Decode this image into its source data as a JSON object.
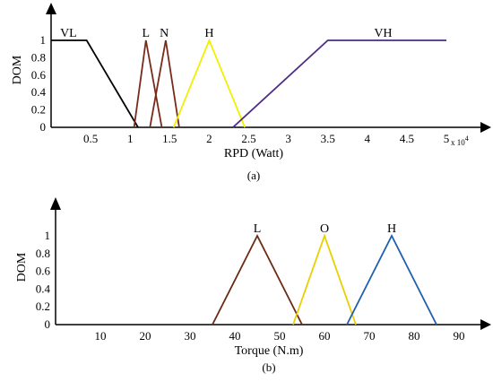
{
  "chart_data": [
    {
      "type": "line",
      "panel_label": "(a)",
      "xlabel": "RPD (Watt)",
      "ylabel": "DOM",
      "x_multiplier": "x 10",
      "x_multiplier_exp": "4",
      "xlim": [
        0,
        5.0
      ],
      "ylim": [
        0,
        1
      ],
      "xticks": [
        0.5,
        1,
        1.5,
        2,
        2.5,
        3,
        3.5,
        4,
        4.5,
        5
      ],
      "xtick_labels": [
        "0.5",
        "1",
        "1.5",
        "2",
        "2.5",
        "3",
        "3.5",
        "4",
        "4.5",
        "5"
      ],
      "yticks": [
        0,
        0.2,
        0.4,
        0.6,
        0.8,
        1
      ],
      "ytick_labels": [
        "0",
        "0.2",
        "0.4",
        "0.6",
        "0.8",
        "1"
      ],
      "series": [
        {
          "name": "VL",
          "color": "#000000",
          "label_x": 0.22,
          "x": [
            -0.4,
            0.45,
            1.1
          ],
          "y": [
            1,
            1,
            0
          ]
        },
        {
          "name": "L",
          "color": "#7a2a1a",
          "label_x": 1.2,
          "x": [
            1.05,
            1.2,
            1.4
          ],
          "y": [
            0,
            1,
            0
          ]
        },
        {
          "name": "N",
          "color": "#7a2a1a",
          "label_x": 1.43,
          "x": [
            1.25,
            1.45,
            1.62
          ],
          "y": [
            0,
            1,
            0
          ]
        },
        {
          "name": "H",
          "color": "#f0f000",
          "label_x": 2.0,
          "x": [
            1.55,
            2.0,
            2.45
          ],
          "y": [
            0,
            1,
            0
          ]
        },
        {
          "name": "VH",
          "color": "#4b2d86",
          "label_x": 4.2,
          "x": [
            2.3,
            3.5,
            5.0
          ],
          "y": [
            0,
            1,
            1
          ]
        }
      ]
    },
    {
      "type": "line",
      "panel_label": "(b)",
      "xlabel": "Torque (N.m)",
      "ylabel": "DOM",
      "xlim": [
        0,
        92
      ],
      "ylim": [
        0,
        1
      ],
      "xticks": [
        10,
        20,
        30,
        40,
        50,
        60,
        70,
        80,
        90
      ],
      "xtick_labels": [
        "10",
        "20",
        "30",
        "40",
        "50",
        "60",
        "70",
        "80",
        "90"
      ],
      "yticks": [
        0,
        0.2,
        0.4,
        0.6,
        0.8,
        1
      ],
      "ytick_labels": [
        "0",
        "0.2",
        "0.4",
        "0.6",
        "0.8",
        "1"
      ],
      "series": [
        {
          "name": "L",
          "color": "#6b2a14",
          "label_x": 45,
          "x": [
            35,
            45,
            55
          ],
          "y": [
            0,
            1,
            0
          ]
        },
        {
          "name": "O",
          "color": "#e8d000",
          "label_x": 60,
          "x": [
            53,
            60,
            67
          ],
          "y": [
            0,
            1,
            0
          ]
        },
        {
          "name": "H",
          "color": "#1f5fb0",
          "label_x": 75,
          "x": [
            65,
            75,
            85
          ],
          "y": [
            0,
            1,
            0
          ]
        }
      ]
    }
  ]
}
